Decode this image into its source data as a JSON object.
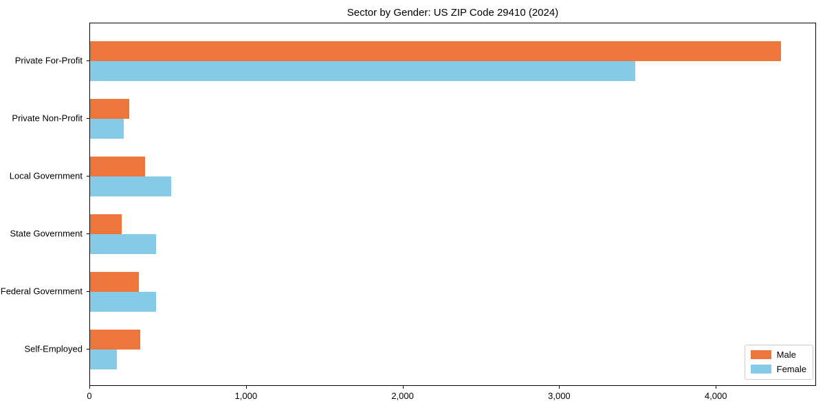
{
  "chart_data": {
    "type": "bar",
    "orientation": "horizontal",
    "title": "Sector by Gender: US ZIP Code 29410 (2024)",
    "categories": [
      "Private For-Profit",
      "Private Non-Profit",
      "Local Government",
      "State Government",
      "Federal Government",
      "Self-Employed"
    ],
    "series": [
      {
        "name": "Male",
        "color": "#EC763C",
        "values": [
          4410,
          250,
          350,
          200,
          310,
          320
        ]
      },
      {
        "name": "Female",
        "color": "#85CBE8",
        "values": [
          3480,
          215,
          520,
          420,
          420,
          170
        ]
      }
    ],
    "xlabel": "",
    "ylabel": "",
    "xlim": [
      0,
      4640
    ],
    "xticks": {
      "values": [
        0,
        1000,
        2000,
        3000,
        4000
      ],
      "labels": [
        "0",
        "1,000",
        "2,000",
        "3,000",
        "4,000"
      ]
    },
    "legend": {
      "position": "lower-right",
      "entries": [
        "Male",
        "Female"
      ]
    },
    "grid": false,
    "axis_color": "#000000",
    "background_color": "#ffffff"
  }
}
